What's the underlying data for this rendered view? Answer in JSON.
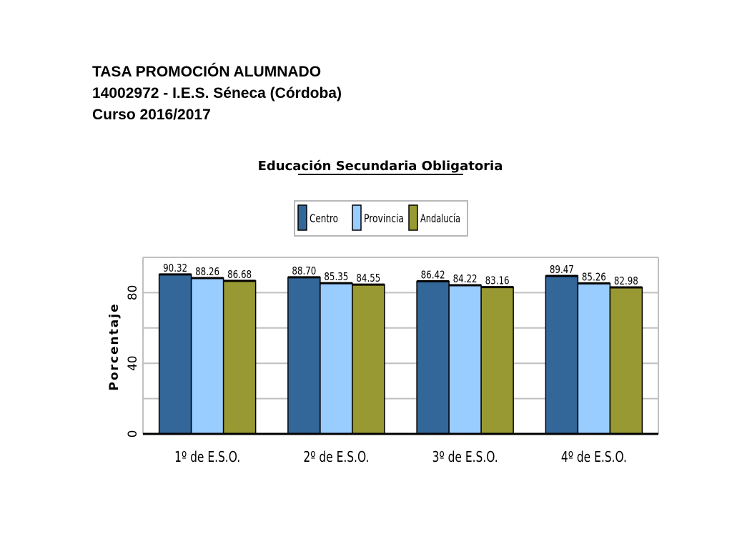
{
  "header": {
    "line1": "TASA PROMOCIÓN ALUMNADO",
    "line2": "14002972 - I.E.S. Séneca (Córdoba)",
    "line3": "Curso 2016/2017"
  },
  "colors": {
    "centro": "#336699",
    "provincia": "#99CCFF",
    "andalucia": "#999933",
    "grid": "#c0c0c0",
    "frame": "#000000"
  },
  "chart_data": {
    "type": "bar",
    "title": "Educación Secundaria Obligatoria",
    "xlabel": "",
    "ylabel": "Porcentaje",
    "ylim": [
      0,
      100
    ],
    "yticks": [
      0,
      40,
      80
    ],
    "grid": true,
    "legend_position": "top-center",
    "categories": [
      "1º de E.S.O.",
      "2º de E.S.O.",
      "3º de E.S.O.",
      "4º de E.S.O."
    ],
    "series": [
      {
        "name": "Centro",
        "color": "#336699",
        "values": [
          90.32,
          88.7,
          86.42,
          89.47
        ],
        "labels": [
          "90.32",
          "88.70",
          "86.42",
          "89.47"
        ]
      },
      {
        "name": "Provincia",
        "color": "#99CCFF",
        "values": [
          88.26,
          85.35,
          84.22,
          85.26
        ],
        "labels": [
          "88.26",
          "85.35",
          "84.22",
          "85.26"
        ]
      },
      {
        "name": "Andalucía",
        "color": "#999933",
        "values": [
          86.68,
          84.55,
          83.16,
          82.98
        ],
        "labels": [
          "86.68",
          "84.55",
          "83.16",
          "82.98"
        ]
      }
    ]
  }
}
